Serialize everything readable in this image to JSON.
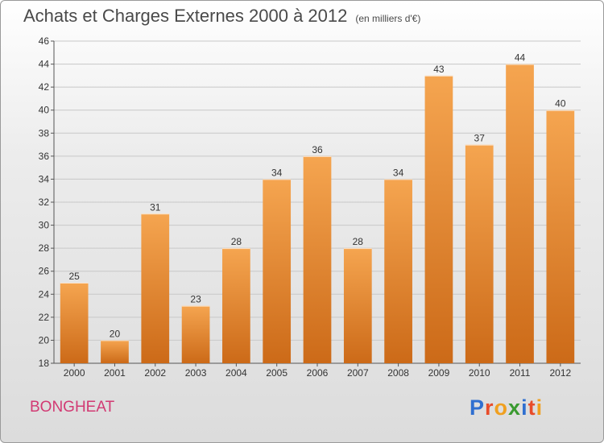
{
  "header": {
    "title": "Achats et Charges Externes 2000 à 2012",
    "subtitle": "(en milliers d'€)"
  },
  "footer": {
    "place": "BONGHEAT",
    "logo": "Proxiti",
    "logo_colors": [
      "#2f6fd0",
      "#e84c2a",
      "#f0a020",
      "#3a9a30",
      "#2f6fd0",
      "#e84c2a",
      "#f0a020"
    ]
  },
  "chart_data": {
    "type": "bar",
    "title": "Achats et Charges Externes 2000 à 2012",
    "subtitle": "(en milliers d'€)",
    "categories": [
      "2000",
      "2001",
      "2002",
      "2003",
      "2004",
      "2005",
      "2006",
      "2007",
      "2008",
      "2009",
      "2010",
      "2011",
      "2012"
    ],
    "values": [
      25,
      20,
      31,
      23,
      28,
      34,
      36,
      28,
      34,
      43,
      37,
      44,
      40
    ],
    "ylim": [
      18,
      46
    ],
    "yticks": [
      18,
      20,
      22,
      24,
      26,
      28,
      30,
      32,
      34,
      36,
      38,
      40,
      42,
      44,
      46
    ],
    "xlabel": "",
    "ylabel": "",
    "grid": true,
    "bar_color_top": "#f5a550",
    "bar_color_bottom": "#cc6a18"
  }
}
